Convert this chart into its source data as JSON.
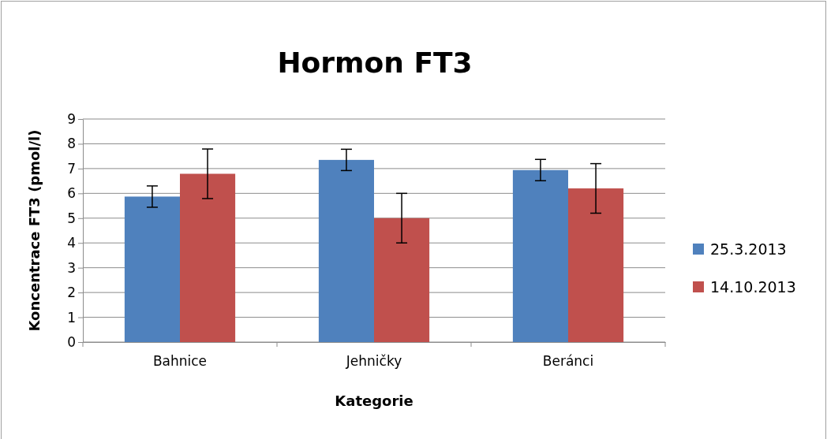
{
  "chart_data": {
    "type": "bar",
    "title": "Hormon FT3",
    "xlabel": "Kategorie",
    "ylabel": "Koncentrace FT3 (pmol/l)",
    "categories": [
      "Bahnice",
      "Jehničky",
      "Beránci"
    ],
    "series": [
      {
        "name": "25.3.2013",
        "color": "#4f81bd",
        "values": [
          5.87,
          7.35,
          6.94
        ],
        "errors": [
          0.43,
          0.43,
          0.43
        ]
      },
      {
        "name": "14.10.2013",
        "color": "#c0504d",
        "values": [
          6.79,
          5.0,
          6.2
        ],
        "errors": [
          1.0,
          1.0,
          1.0
        ]
      }
    ],
    "ylim": [
      0,
      9
    ],
    "yticks": [
      0,
      1,
      2,
      3,
      4,
      5,
      6,
      7,
      8,
      9
    ],
    "grid": "y",
    "legend": "right"
  }
}
